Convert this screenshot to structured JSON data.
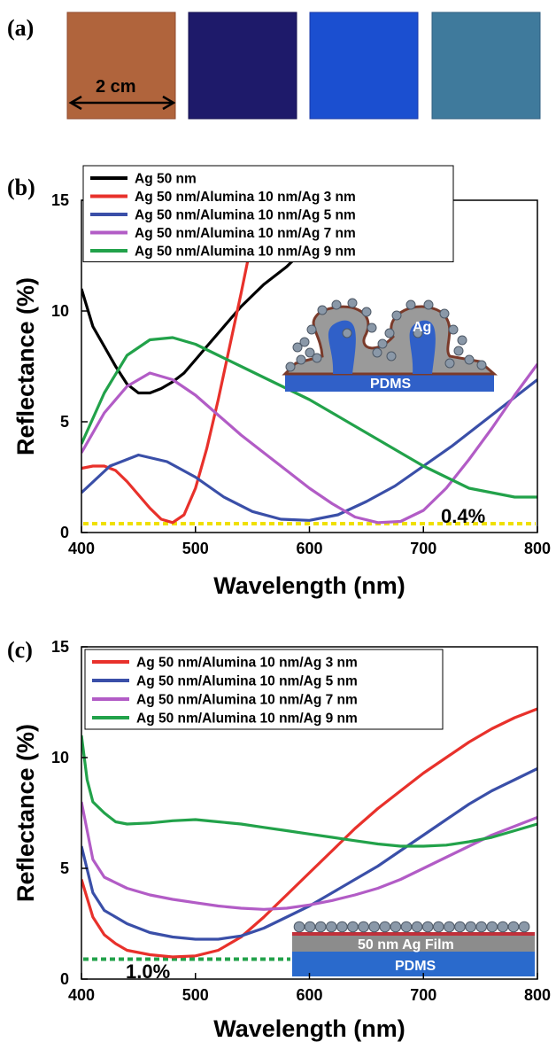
{
  "panel_a": {
    "label": "(a)",
    "scale_label": "2 cm",
    "swatches": [
      {
        "color": "#b0643c",
        "edge": "#8f4a2e"
      },
      {
        "color": "#1e1a6a",
        "edge": "#141050"
      },
      {
        "color": "#1b4fd0",
        "edge": "#1a3aa8"
      },
      {
        "color": "#3f7a9c",
        "edge": "#2f5f80"
      }
    ]
  },
  "chart_data": [
    {
      "panel": "(b)",
      "type": "line",
      "xlabel": "Wavelength (nm)",
      "ylabel": "Reflectance (%)",
      "xlim": [
        400,
        800
      ],
      "ylim": [
        0,
        15
      ],
      "xticks": [
        400,
        500,
        600,
        700,
        800
      ],
      "yticks": [
        0,
        5,
        10,
        15
      ],
      "legend_position": "top-left",
      "annotation": "0.4%",
      "reference_line": {
        "y": 0.4,
        "color": "#f0e000"
      },
      "inset": {
        "top_label": "Ag",
        "bottom_label": "PDMS"
      },
      "series": [
        {
          "name": "Ag 50 nm",
          "color": "#000000",
          "x": [
            400,
            410,
            420,
            430,
            440,
            450,
            460,
            470,
            480,
            490,
            500,
            510,
            520,
            530,
            540,
            550,
            560,
            570,
            580,
            590,
            600
          ],
          "y": [
            11.0,
            9.3,
            8.4,
            7.5,
            6.7,
            6.3,
            6.3,
            6.5,
            6.8,
            7.2,
            7.8,
            8.4,
            9.0,
            9.6,
            10.2,
            10.7,
            11.2,
            11.6,
            12.0,
            12.5,
            12.9
          ]
        },
        {
          "name": "Ag 50 nm/Alumina 10 nm/Ag 3 nm",
          "color": "#e8312b",
          "x": [
            400,
            410,
            420,
            430,
            440,
            450,
            460,
            470,
            480,
            490,
            500,
            510,
            520,
            530,
            540,
            550,
            555
          ],
          "y": [
            2.9,
            3.0,
            3.0,
            2.8,
            2.3,
            1.7,
            1.1,
            0.6,
            0.45,
            0.8,
            2.0,
            3.8,
            6.0,
            8.4,
            10.8,
            13.3,
            14.5
          ]
        },
        {
          "name": "Ag 50 nm/Alumina 10 nm/Ag 5 nm",
          "color": "#3a4fa8",
          "x": [
            400,
            425,
            450,
            475,
            500,
            525,
            550,
            575,
            600,
            625,
            650,
            675,
            700,
            725,
            750,
            775,
            800
          ],
          "y": [
            1.8,
            3.0,
            3.5,
            3.2,
            2.5,
            1.6,
            0.95,
            0.6,
            0.55,
            0.8,
            1.4,
            2.1,
            3.0,
            3.9,
            4.9,
            5.9,
            6.9
          ]
        },
        {
          "name": "Ag 50 nm/Alumina 10 nm/Ag 7 nm",
          "color": "#b25cc6",
          "x": [
            400,
            420,
            440,
            460,
            480,
            500,
            520,
            540,
            560,
            580,
            600,
            620,
            640,
            660,
            680,
            700,
            720,
            740,
            760,
            780,
            800
          ],
          "y": [
            3.6,
            5.4,
            6.6,
            7.2,
            6.9,
            6.2,
            5.3,
            4.4,
            3.6,
            2.8,
            2.0,
            1.3,
            0.7,
            0.45,
            0.5,
            1.0,
            2.0,
            3.3,
            4.7,
            6.2,
            7.6
          ]
        },
        {
          "name": "Ag 50 nm/Alumina 10 nm/Ag 9 nm",
          "color": "#22a24a",
          "x": [
            400,
            420,
            440,
            460,
            480,
            500,
            520,
            540,
            560,
            580,
            600,
            620,
            640,
            660,
            680,
            700,
            720,
            740,
            760,
            780,
            800
          ],
          "y": [
            4.0,
            6.3,
            8.0,
            8.7,
            8.8,
            8.5,
            8.0,
            7.5,
            7.0,
            6.5,
            6.0,
            5.4,
            4.8,
            4.2,
            3.6,
            3.0,
            2.5,
            2.0,
            1.8,
            1.6,
            1.6
          ]
        }
      ]
    },
    {
      "panel": "(c)",
      "type": "line",
      "xlabel": "Wavelength (nm)",
      "ylabel": "Reflectance (%)",
      "xlim": [
        400,
        800
      ],
      "ylim": [
        0,
        15
      ],
      "xticks": [
        400,
        500,
        600,
        700,
        800
      ],
      "yticks": [
        0,
        5,
        10,
        15
      ],
      "legend_position": "top-left",
      "annotation": "1.0%",
      "reference_line": {
        "y": 0.9,
        "color": "#22a24a"
      },
      "inset": {
        "top_label": "50 nm Ag Film",
        "bottom_label": "PDMS"
      },
      "series": [
        {
          "name": "Ag 50 nm/Alumina 10 nm/Ag 3 nm",
          "color": "#e8312b",
          "x": [
            400,
            410,
            420,
            430,
            440,
            460,
            480,
            500,
            520,
            540,
            560,
            580,
            600,
            620,
            640,
            660,
            680,
            700,
            720,
            740,
            760,
            780,
            800
          ],
          "y": [
            4.5,
            2.8,
            2.0,
            1.6,
            1.3,
            1.1,
            1.0,
            1.05,
            1.3,
            1.9,
            2.8,
            3.8,
            4.8,
            5.8,
            6.8,
            7.7,
            8.5,
            9.3,
            10.0,
            10.7,
            11.3,
            11.8,
            12.2
          ]
        },
        {
          "name": "Ag 50 nm/Alumina 10 nm/Ag 5 nm",
          "color": "#3a4fa8",
          "x": [
            400,
            410,
            420,
            440,
            460,
            480,
            500,
            520,
            540,
            560,
            580,
            600,
            620,
            640,
            660,
            680,
            700,
            720,
            740,
            760,
            780,
            800
          ],
          "y": [
            6.0,
            3.9,
            3.1,
            2.5,
            2.1,
            1.9,
            1.8,
            1.8,
            1.95,
            2.3,
            2.8,
            3.3,
            3.9,
            4.5,
            5.1,
            5.8,
            6.5,
            7.2,
            7.9,
            8.5,
            9.0,
            9.5
          ]
        },
        {
          "name": "Ag 50 nm/Alumina 10 nm/Ag 7 nm",
          "color": "#b25cc6",
          "x": [
            400,
            410,
            420,
            440,
            460,
            480,
            500,
            520,
            540,
            560,
            580,
            600,
            620,
            640,
            660,
            680,
            700,
            720,
            740,
            760,
            780,
            800
          ],
          "y": [
            8.0,
            5.4,
            4.6,
            4.1,
            3.8,
            3.6,
            3.45,
            3.3,
            3.2,
            3.15,
            3.2,
            3.35,
            3.55,
            3.8,
            4.1,
            4.5,
            5.0,
            5.5,
            6.0,
            6.5,
            6.9,
            7.3
          ]
        },
        {
          "name": "Ag 50 nm/Alumina 10 nm/Ag 9 nm",
          "color": "#22a24a",
          "x": [
            400,
            405,
            410,
            420,
            430,
            440,
            460,
            480,
            500,
            520,
            540,
            560,
            580,
            600,
            620,
            640,
            660,
            680,
            700,
            720,
            740,
            760,
            780,
            800
          ],
          "y": [
            11.0,
            9.0,
            8.0,
            7.5,
            7.1,
            7.0,
            7.05,
            7.15,
            7.2,
            7.1,
            7.0,
            6.85,
            6.7,
            6.55,
            6.4,
            6.25,
            6.1,
            6.0,
            6.0,
            6.05,
            6.2,
            6.4,
            6.7,
            7.0
          ]
        }
      ]
    }
  ]
}
